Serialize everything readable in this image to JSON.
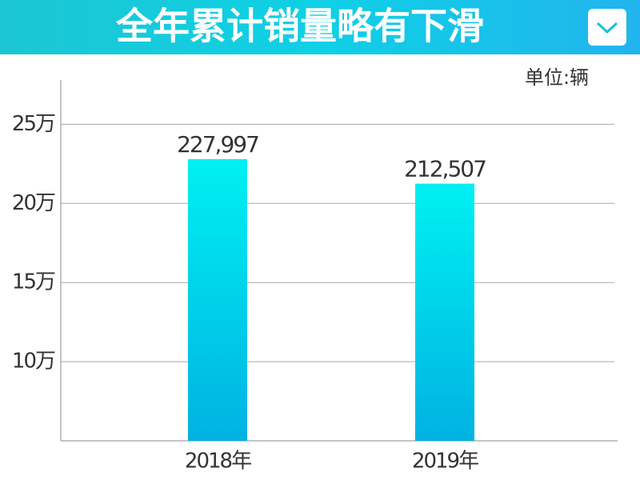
{
  "chart_data": {
    "type": "bar",
    "title": "全年累计销量略有下滑",
    "unit_label": "单位:辆",
    "categories": [
      "2018年",
      "2019年"
    ],
    "values": [
      227997,
      212507
    ],
    "value_labels": [
      "227,997",
      "212,507"
    ],
    "colors": [
      "#00f0f2",
      "#00b2e2"
    ],
    "ylim": [
      50000,
      278000
    ],
    "yticks": [
      {
        "value": 100000,
        "label": "10万"
      },
      {
        "value": 150000,
        "label": "15万"
      },
      {
        "value": 200000,
        "label": "20万"
      },
      {
        "value": 250000,
        "label": "25万"
      }
    ],
    "grid": true
  }
}
